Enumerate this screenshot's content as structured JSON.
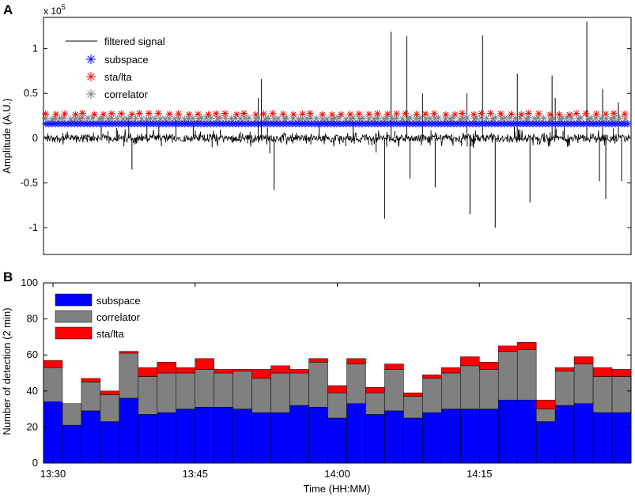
{
  "chart_data": [
    {
      "panel_label": "A",
      "type": "line",
      "ylabel": "Amplitude (A.U.)",
      "y_multiplier": "x 10",
      "y_multiplier_exp": "5",
      "ylim": [
        -1.3,
        1.35
      ],
      "yticks": [
        -1,
        -0.5,
        0,
        0.5,
        1
      ],
      "ytick_labels": [
        "-1",
        "-0.5",
        "0",
        "0.5",
        "1"
      ],
      "xlim": [
        "13:29",
        "14:31"
      ],
      "legend_position": "top-left",
      "series": [
        {
          "name": "filtered signal",
          "style": "line",
          "color": "#000000",
          "baseline": 0,
          "spikes": [
            {
              "x": "13:38",
              "y": 0.22
            },
            {
              "x": "13:38",
              "y": -0.35
            },
            {
              "x": "13:51",
              "y": 0.45
            },
            {
              "x": "13:52",
              "y": 0.66
            },
            {
              "x": "13:53",
              "y": -0.58
            },
            {
              "x": "14:05",
              "y": 1.19
            },
            {
              "x": "14:05",
              "y": -0.9
            },
            {
              "x": "14:07",
              "y": 1.14
            },
            {
              "x": "14:07",
              "y": -0.45
            },
            {
              "x": "14:09",
              "y": 0.5
            },
            {
              "x": "14:10",
              "y": -0.55
            },
            {
              "x": "14:13",
              "y": 0.5
            },
            {
              "x": "14:14",
              "y": -0.85
            },
            {
              "x": "14:15",
              "y": 1.15
            },
            {
              "x": "14:16",
              "y": -1.0
            },
            {
              "x": "14:19",
              "y": 0.72
            },
            {
              "x": "14:20",
              "y": -0.72
            },
            {
              "x": "14:22",
              "y": 0.7
            },
            {
              "x": "14:23",
              "y": 0.45
            },
            {
              "x": "14:26",
              "y": 1.3
            },
            {
              "x": "14:27",
              "y": -0.48
            },
            {
              "x": "14:28",
              "y": 0.55
            },
            {
              "x": "14:28",
              "y": -0.68
            },
            {
              "x": "14:29",
              "y": 0.4
            },
            {
              "x": "14:30",
              "y": -0.48
            }
          ]
        },
        {
          "name": "subspace",
          "style": "marker",
          "marker": "*",
          "color": "#0000ff",
          "y": 0.16
        },
        {
          "name": "sta/lta",
          "style": "marker",
          "marker": "*",
          "color": "#ff0000",
          "y": 0.27
        },
        {
          "name": "correlator",
          "style": "marker",
          "marker": "*",
          "color": "#808080",
          "y": 0.22
        }
      ]
    },
    {
      "panel_label": "B",
      "type": "bar",
      "stacked": true,
      "xlabel": "Time (HH:MM)",
      "ylabel": "Number of detection (2 min)",
      "ylim": [
        0,
        100
      ],
      "yticks": [
        0,
        20,
        40,
        60,
        80,
        100
      ],
      "ytick_labels": [
        "0",
        "20",
        "40",
        "60",
        "80",
        "100"
      ],
      "xticks": [
        "13:30",
        "13:45",
        "14:00",
        "14:15"
      ],
      "legend_position": "top-left",
      "bin_minutes": 2,
      "categories": [
        "13:29",
        "13:31",
        "13:33",
        "13:35",
        "13:37",
        "13:39",
        "13:41",
        "13:43",
        "13:45",
        "13:47",
        "13:49",
        "13:51",
        "13:53",
        "13:55",
        "13:57",
        "13:59",
        "14:01",
        "14:03",
        "14:05",
        "14:07",
        "14:09",
        "14:11",
        "14:13",
        "14:15",
        "14:17",
        "14:19",
        "14:21",
        "14:23",
        "14:25",
        "14:27",
        "14:29"
      ],
      "series": [
        {
          "name": "subspace",
          "color": "#0000ff",
          "values": [
            34,
            21,
            29,
            23,
            36,
            27,
            28,
            30,
            31,
            31,
            30,
            28,
            28,
            32,
            31,
            25,
            33,
            27,
            29,
            25,
            28,
            30,
            30,
            30,
            35,
            35,
            23,
            32,
            33,
            28,
            28
          ]
        },
        {
          "name": "correlator",
          "color": "#808080",
          "values": [
            19,
            12,
            16,
            15,
            25,
            21,
            22,
            20,
            21,
            19,
            21,
            19,
            22,
            18,
            25,
            14,
            22,
            12,
            23,
            12,
            19,
            20,
            24,
            22,
            27,
            28,
            7,
            19,
            22,
            20,
            20
          ]
        },
        {
          "name": "sta/lta",
          "color": "#ff0000",
          "values": [
            4,
            0,
            2,
            2,
            1,
            5,
            6,
            3,
            6,
            2,
            1,
            5,
            4,
            2,
            2,
            4,
            3,
            3,
            3,
            2,
            2,
            3,
            5,
            4,
            3,
            4,
            5,
            2,
            4,
            5,
            4
          ]
        }
      ]
    }
  ]
}
